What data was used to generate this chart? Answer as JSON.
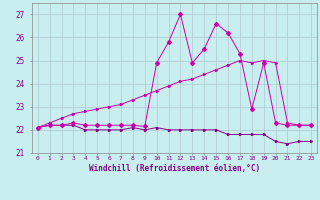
{
  "xlabel": "Windchill (Refroidissement éolien,°C)",
  "x_hours": [
    0,
    1,
    2,
    3,
    4,
    5,
    6,
    7,
    8,
    9,
    10,
    11,
    12,
    13,
    14,
    15,
    16,
    17,
    18,
    19,
    20,
    21,
    22,
    23
  ],
  "temp_line": [
    22.1,
    22.2,
    22.2,
    22.2,
    22.0,
    22.0,
    22.0,
    22.0,
    22.1,
    22.0,
    22.1,
    22.0,
    22.0,
    22.0,
    22.0,
    22.0,
    21.8,
    21.8,
    21.8,
    21.8,
    21.5,
    21.4,
    21.5,
    21.5
  ],
  "windchill_line": [
    22.1,
    22.2,
    22.2,
    22.3,
    22.2,
    22.2,
    22.2,
    22.2,
    22.2,
    22.15,
    24.9,
    25.8,
    27.0,
    24.9,
    25.5,
    26.6,
    26.2,
    25.3,
    22.9,
    24.9,
    22.3,
    22.2,
    22.2,
    22.2
  ],
  "linear_line": [
    22.1,
    22.3,
    22.5,
    22.7,
    22.8,
    22.9,
    23.0,
    23.1,
    23.3,
    23.5,
    23.7,
    23.9,
    24.1,
    24.2,
    24.4,
    24.6,
    24.8,
    25.0,
    24.9,
    25.0,
    24.9,
    22.3,
    22.2,
    22.2
  ],
  "bg_color": "#c8eef0",
  "grid_color": "#b0c8d0",
  "line_color_main": "#cc00aa",
  "line_color_temp": "#880088",
  "ylim": [
    21.0,
    27.5
  ],
  "yticks": [
    21,
    22,
    23,
    24,
    25,
    26,
    27
  ],
  "xtick_labels": [
    "0",
    "1",
    "2",
    "3",
    "4",
    "5",
    "6",
    "7",
    "8",
    "9",
    "10",
    "11",
    "12",
    "13",
    "14",
    "15",
    "16",
    "17",
    "18",
    "19",
    "20",
    "21",
    "22",
    "23"
  ]
}
